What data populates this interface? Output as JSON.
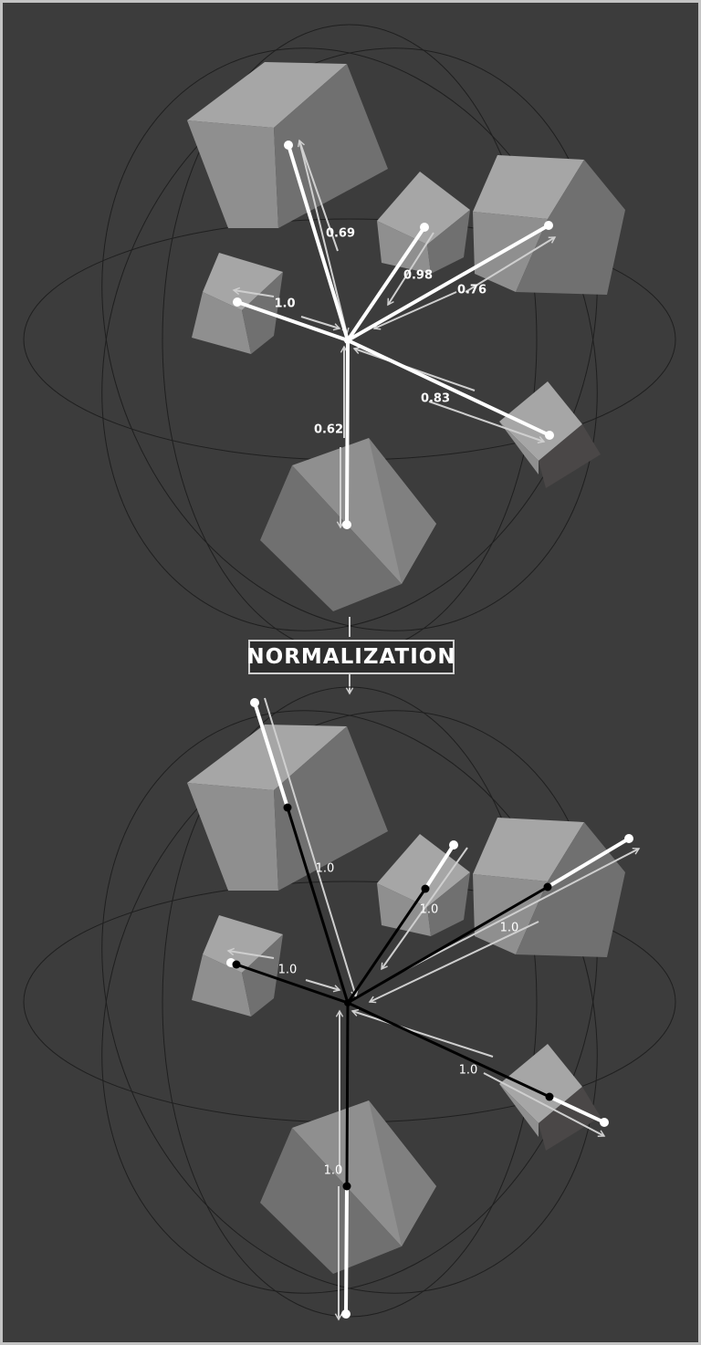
{
  "process_label": "NORMALIZATION",
  "before": {
    "weights": [
      "0.69",
      "0.98",
      "1.0",
      "0.76",
      "0.83",
      "0.62"
    ]
  },
  "after": {
    "weights": [
      "1.0",
      "1.0",
      "1.0",
      "1.0",
      "1.0",
      "1.0"
    ]
  },
  "colors": {
    "background": "#3c3c3c",
    "frame": "#c4c4c4",
    "vector_before": "#ffffff",
    "vector_normalized": "#000000",
    "arrow": "#cfcfcf",
    "cube_light": "#a6a6a6",
    "cube_mid": "#8f8f8f",
    "cube_dark": "#707070"
  }
}
